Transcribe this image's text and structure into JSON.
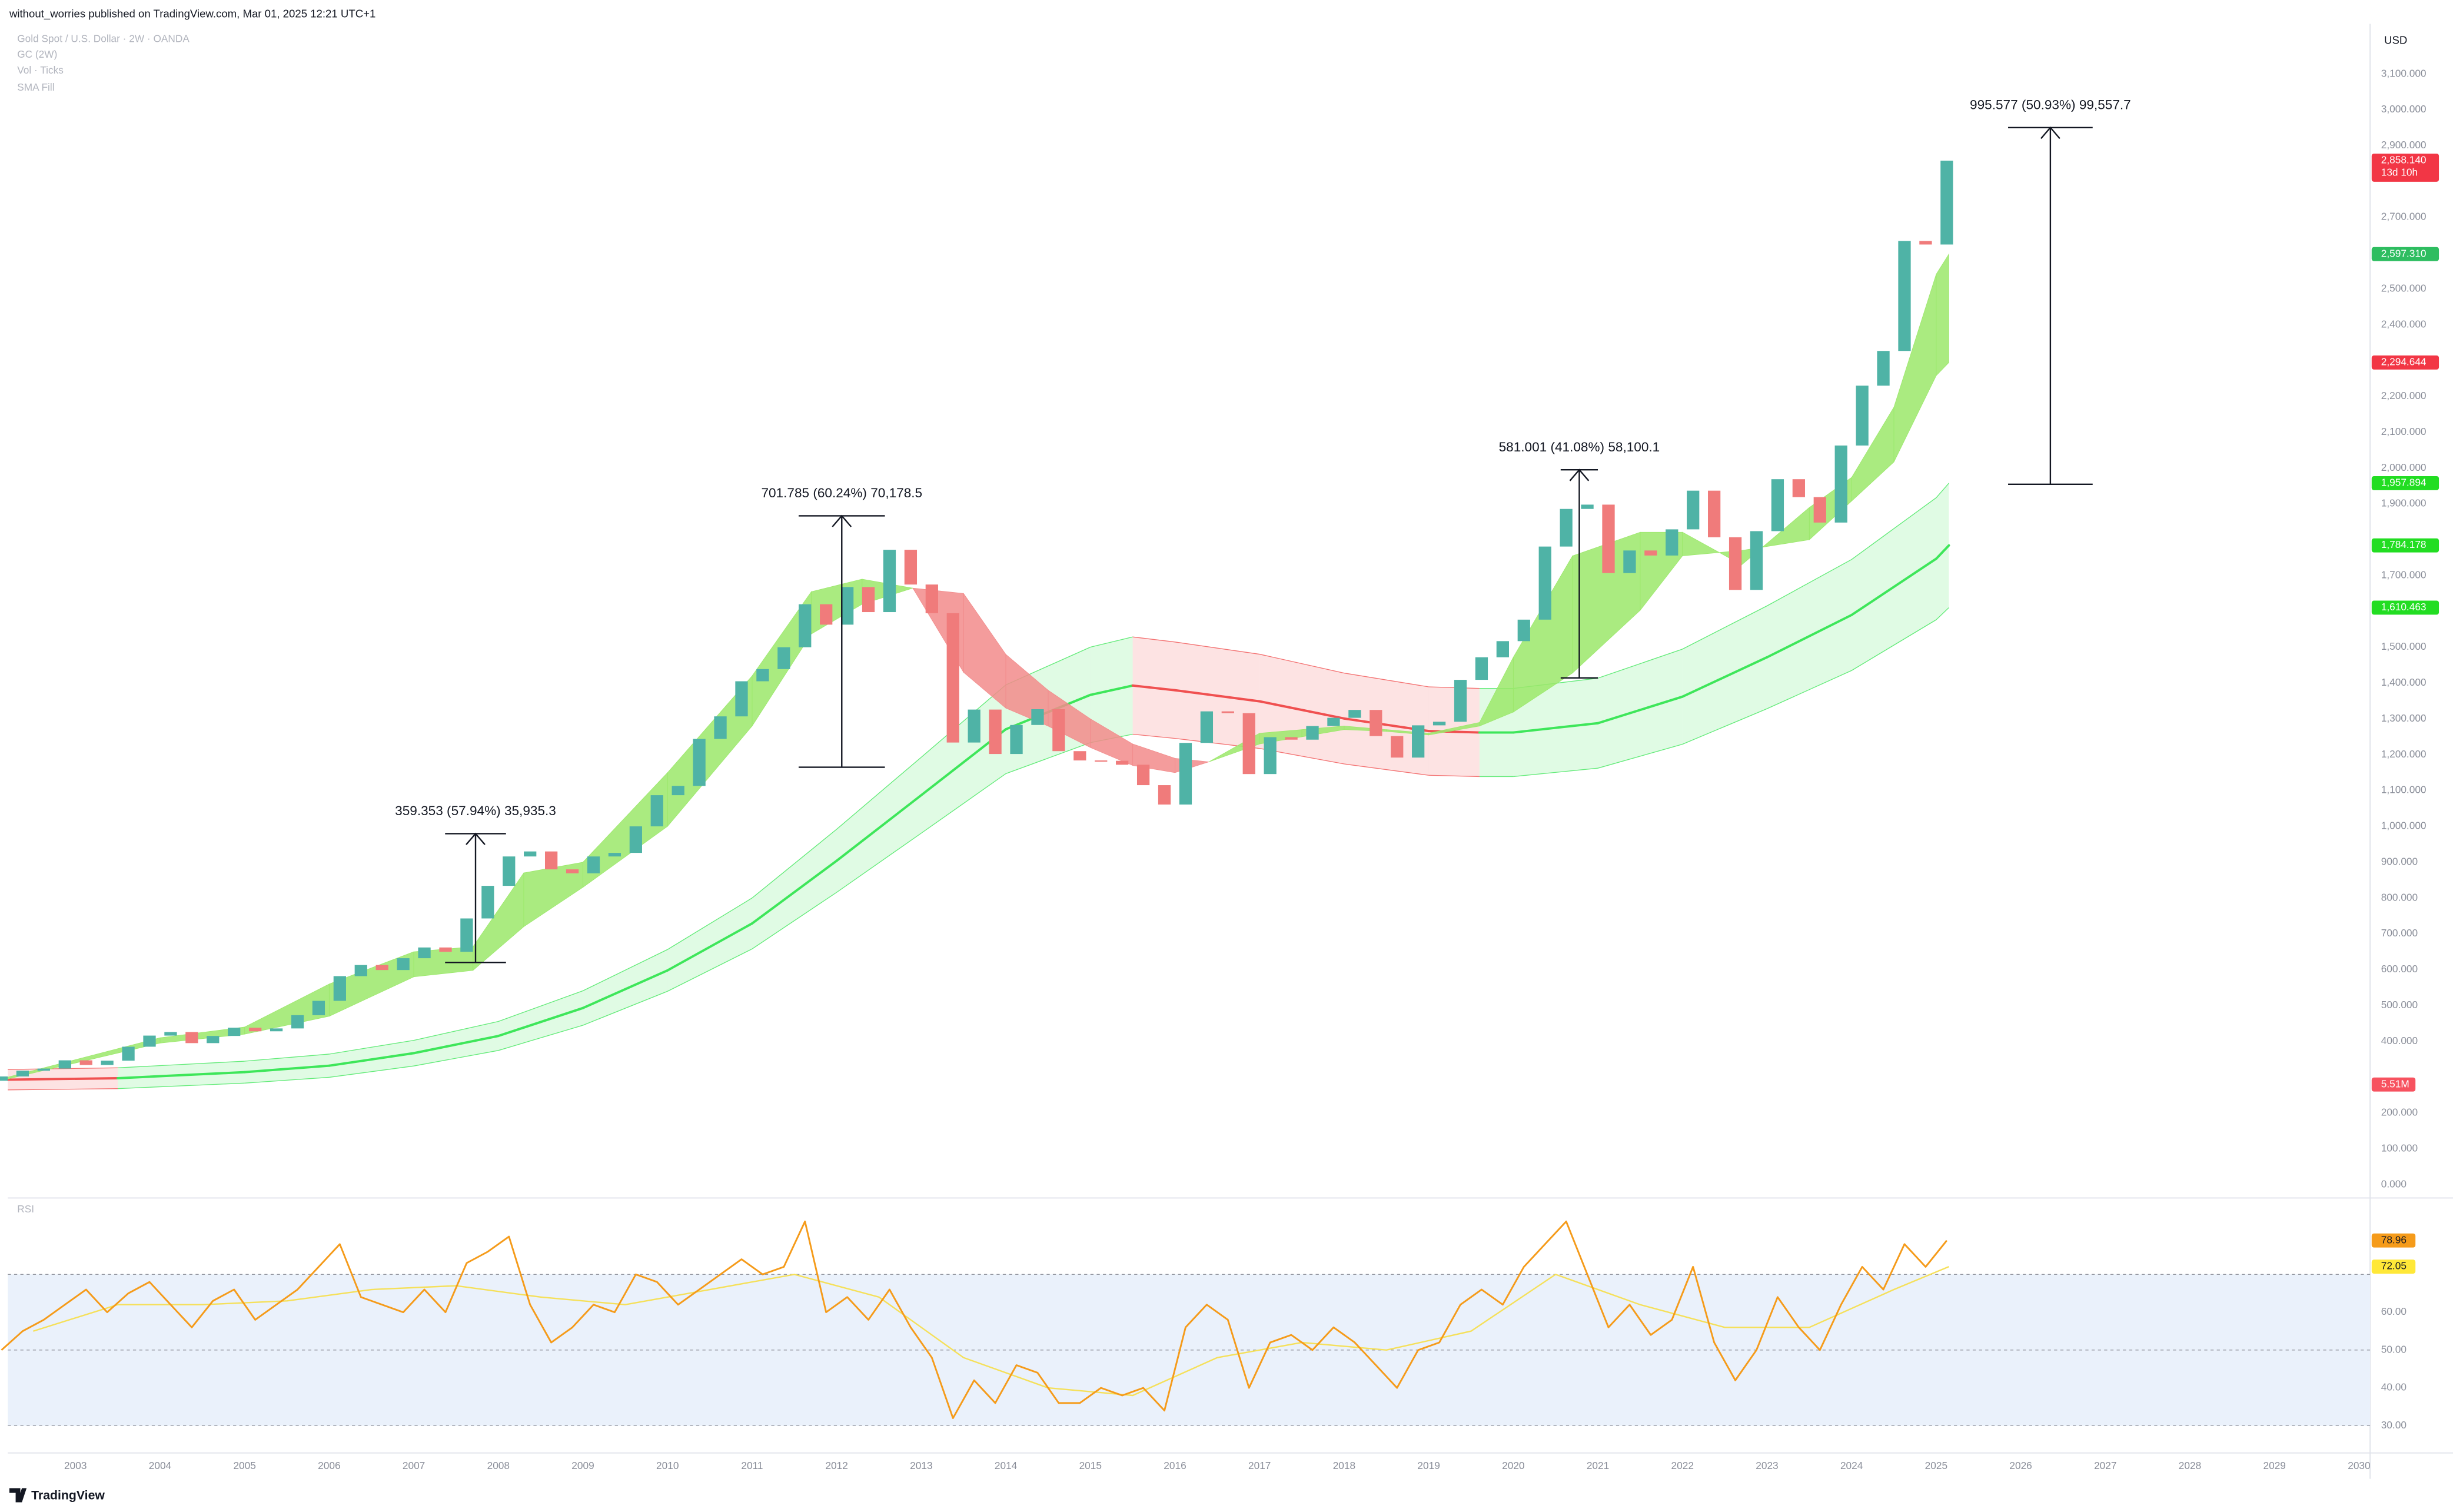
{
  "chart_data": {
    "type": "candlestick",
    "header": "without_worries published on TradingView.com, Mar 01, 2025 12:21 UTC+1",
    "legend": [
      "Gold Spot / U.S. Dollar · 2W · OANDA",
      "GC (2W)",
      "Vol · Ticks",
      "SMA Fill"
    ],
    "currency": "USD",
    "footer": "TradingView",
    "xlim": [
      2002.2,
      2030.13
    ],
    "xticks": [
      2003,
      2004,
      2005,
      2006,
      2007,
      2008,
      2009,
      2010,
      2011,
      2012,
      2013,
      2014,
      2015,
      2016,
      2017,
      2018,
      2019,
      2020,
      2021,
      2022,
      2023,
      2024,
      2025,
      2026,
      2027,
      2028,
      2029,
      2030
    ],
    "ylim": [
      -35,
      3240
    ],
    "yticks": [
      {
        "value": 3100,
        "label": "3,100.000"
      },
      {
        "value": 3000,
        "label": "3,000.000"
      },
      {
        "value": 2900,
        "label": "2,900.000"
      },
      {
        "value": 2700,
        "label": "2,700.000"
      },
      {
        "value": 2500,
        "label": "2,500.000"
      },
      {
        "value": 2400,
        "label": "2,400.000"
      },
      {
        "value": 2200,
        "label": "2,200.000"
      },
      {
        "value": 2100,
        "label": "2,100.000"
      },
      {
        "value": 2000,
        "label": "2,000.000"
      },
      {
        "value": 1900,
        "label": "1,900.000"
      },
      {
        "value": 1700,
        "label": "1,700.000"
      },
      {
        "value": 1500,
        "label": "1,500.000"
      },
      {
        "value": 1400,
        "label": "1,400.000"
      },
      {
        "value": 1300,
        "label": "1,300.000"
      },
      {
        "value": 1200,
        "label": "1,200.000"
      },
      {
        "value": 1100,
        "label": "1,100.000"
      },
      {
        "value": 1000,
        "label": "1,000.000"
      },
      {
        "value": 900,
        "label": "900.000"
      },
      {
        "value": 800,
        "label": "800.000"
      },
      {
        "value": 700,
        "label": "700.000"
      },
      {
        "value": 600,
        "label": "600.000"
      },
      {
        "value": 500,
        "label": "500.000"
      },
      {
        "value": 400,
        "label": "400.000"
      },
      {
        "value": 200,
        "label": "200.000"
      },
      {
        "value": 100,
        "label": "100.000"
      },
      {
        "value": 0,
        "label": "0.000"
      }
    ],
    "candles": {
      "up_color": "#4fb3a6",
      "down_color": "#f07b7b",
      "open": 290,
      "x": [
        2002,
        2002.25,
        2002.5,
        2002.75,
        2003,
        2003.25,
        2003.5,
        2003.75,
        2004,
        2004.25,
        2004.5,
        2004.75,
        2005,
        2005.25,
        2005.5,
        2005.75,
        2006,
        2006.25,
        2006.5,
        2006.75,
        2007,
        2007.25,
        2007.5,
        2007.75,
        2008,
        2008.25,
        2008.5,
        2008.75,
        2009,
        2009.25,
        2009.5,
        2009.75,
        2010,
        2010.25,
        2010.5,
        2010.75,
        2011,
        2011.25,
        2011.5,
        2011.75,
        2012,
        2012.25,
        2012.5,
        2012.75,
        2013,
        2013.25,
        2013.5,
        2013.75,
        2014,
        2014.25,
        2014.5,
        2014.75,
        2015,
        2015.25,
        2015.5,
        2015.75,
        2016,
        2016.25,
        2016.5,
        2016.75,
        2017,
        2017.25,
        2017.5,
        2017.75,
        2018,
        2018.25,
        2018.5,
        2018.75,
        2019,
        2019.25,
        2019.5,
        2019.75,
        2020,
        2020.25,
        2020.5,
        2020.75,
        2021,
        2021.25,
        2021.5,
        2021.75,
        2022,
        2022.25,
        2022.5,
        2022.75,
        2023,
        2023.25,
        2023.5,
        2023.75,
        2024,
        2024.25,
        2024.5,
        2024.75,
        2025
      ],
      "close": [
        302,
        318,
        324,
        347,
        334,
        346,
        385,
        416,
        426,
        395,
        415,
        438,
        428,
        436,
        473,
        513,
        582,
        613,
        599,
        632,
        662,
        650,
        743,
        834,
        916,
        930,
        880,
        869,
        916,
        926,
        1000,
        1087,
        1113,
        1244,
        1307,
        1405,
        1439,
        1500,
        1620,
        1563,
        1668,
        1598,
        1772,
        1675,
        1595,
        1234,
        1326,
        1202,
        1283,
        1327,
        1210,
        1184,
        1183,
        1172,
        1115,
        1061,
        1233,
        1321,
        1316,
        1146,
        1249,
        1242,
        1280,
        1303,
        1325,
        1252,
        1192,
        1282,
        1292,
        1409,
        1472,
        1517,
        1577,
        1781,
        1886,
        1898,
        1707,
        1770,
        1756,
        1829,
        1937,
        1807,
        1660,
        1824,
        1969,
        1919,
        1848,
        2063,
        2230,
        2327,
        2634,
        2624,
        2858.14
      ]
    },
    "long_band": {
      "x": [
        2002.2,
        2003.5,
        2005,
        2006,
        2007,
        2008,
        2009,
        2010,
        2011,
        2012,
        2013,
        2014,
        2015,
        2015.5,
        2016,
        2017,
        2018,
        2019,
        2019.6,
        2020,
        2021,
        2022,
        2023,
        2024,
        2025,
        2025.15
      ],
      "mid": [
        293,
        297,
        314,
        332,
        367,
        415,
        493,
        598,
        729,
        904,
        1087,
        1271,
        1367,
        1393,
        1380,
        1349,
        1301,
        1266,
        1262,
        1262,
        1288,
        1362,
        1472,
        1590,
        1747,
        1784.178
      ],
      "upper": [
        321.6,
        326,
        344.6,
        364.4,
        402.8,
        455.5,
        541.1,
        656.3,
        800.1,
        992.1,
        1193,
        1395,
        1500.3,
        1528.8,
        1514.6,
        1480.5,
        1427.8,
        1389.4,
        1385,
        1385,
        1413.6,
        1494.8,
        1615.5,
        1745,
        1917.3,
        1957.894
      ],
      "lower": [
        264.4,
        268,
        283.4,
        299.6,
        331.2,
        374.5,
        444.9,
        539.7,
        657.9,
        815.9,
        981,
        1147.1,
        1233.7,
        1257.2,
        1245.5,
        1217.5,
        1174.2,
        1142.6,
        1139,
        1139,
        1162.4,
        1229.2,
        1328.5,
        1435,
        1576.7,
        1610.463
      ],
      "colors": [
        "#f05050",
        "#3ee65a",
        "#3ee65a",
        "#3ee65a",
        "#3ee65a",
        "#3ee65a",
        "#3ee65a",
        "#3ee65a",
        "#3ee65a",
        "#3ee65a",
        "#3ee65a",
        "#3ee65a",
        "#3ee65a",
        "#f05050",
        "#f05050",
        "#f05050",
        "#f05050",
        "#f05050",
        "#3ee65a",
        "#3ee65a",
        "#3ee65a",
        "#3ee65a",
        "#3ee65a",
        "#3ee65a",
        "#3ee65a"
      ]
    },
    "fast_fill": {
      "up_color": "#9be86a",
      "down_color": "#f28b8b",
      "x": [
        2002.2,
        2004,
        2005,
        2006,
        2007,
        2007.7,
        2008.3,
        2009,
        2010,
        2011,
        2011.7,
        2012.3,
        2012.9,
        2013.5,
        2014,
        2014.5,
        2015,
        2015.5,
        2016,
        2016.4,
        2017,
        2017.5,
        2018,
        2018.5,
        2019,
        2019.6,
        2020,
        2020.7,
        2021.5,
        2022,
        2022.7,
        2023.5,
        2024,
        2024.5,
        2025,
        2025.15
      ],
      "fast": [
        300,
        410,
        440,
        560,
        650,
        664,
        870,
        900,
        1150,
        1420,
        1655,
        1690,
        1665,
        1430,
        1330,
        1280,
        1220,
        1170,
        1150,
        1180,
        1260,
        1270,
        1280,
        1270,
        1260,
        1290,
        1472,
        1755,
        1821,
        1821,
        1730,
        1890,
        1974,
        2170,
        2541,
        2597.31
      ],
      "slow": [
        295,
        395,
        420,
        470,
        580,
        598,
        720,
        830,
        1000,
        1280,
        1537,
        1620,
        1665,
        1650,
        1480,
        1380,
        1300,
        1230,
        1190,
        1180,
        1230,
        1250,
        1270,
        1265,
        1255,
        1280,
        1319,
        1428,
        1603,
        1755,
        1770,
        1800,
        1908,
        2017,
        2258,
        2294.644
      ]
    },
    "price_labels": [
      {
        "value": 2858.14,
        "label": "2,858.140",
        "sub": "13d 10h",
        "color": "#f23645"
      },
      {
        "value": 2597.31,
        "label": "2,597.310",
        "color": "#2ebd60"
      },
      {
        "value": 2294.644,
        "label": "2,294.644",
        "color": "#f23645"
      },
      {
        "value": 1957.894,
        "label": "1,957.894",
        "color": "#22dd22"
      },
      {
        "value": 1784.178,
        "label": "1,784.178",
        "color": "#22dd22"
      },
      {
        "value": 1610.463,
        "label": "1,610.463",
        "color": "#22dd22"
      }
    ],
    "volume_label": {
      "value": 5510000,
      "label": "5.51M",
      "color": "#f7525f"
    },
    "measurements": [
      {
        "label": "359.353 (57.94%) 35,935.3",
        "from": 620.2,
        "to": 979.6,
        "x": [
          2007.37,
          2008.09
        ]
      },
      {
        "label": "701.785 (60.24%) 70,178.5",
        "from": 1165,
        "to": 1866.8,
        "x": [
          2011.55,
          2012.57
        ]
      },
      {
        "label": "581.001 (41.08%) 58,100.1",
        "from": 1414.3,
        "to": 1995.3,
        "x": [
          2020.56,
          2021.0
        ]
      },
      {
        "label": "995.577 (50.93%) 99,557.7",
        "from": 1954.8,
        "to": 2950.4,
        "x": [
          2025.85,
          2026.85
        ]
      }
    ],
    "rsi": {
      "title": "RSI",
      "color": "#f59b1a",
      "ma_color": "#f5e05a",
      "band_color": "#eaf1fb",
      "ylim": [
        23,
        90
      ],
      "yticks": [
        {
          "value": 60,
          "label": "60.00"
        },
        {
          "value": 50,
          "label": "50.00"
        },
        {
          "value": 40,
          "label": "40.00"
        },
        {
          "value": 30,
          "label": "30.00"
        }
      ],
      "band": [
        30,
        70
      ],
      "mid": 50,
      "values": [
        50,
        55,
        58,
        62,
        66,
        60,
        65,
        68,
        62,
        56,
        63,
        66,
        58,
        62,
        66,
        72,
        78,
        64,
        62,
        60,
        66,
        60,
        73,
        76,
        80,
        62,
        52,
        56,
        62,
        60,
        70,
        68,
        62,
        66,
        70,
        74,
        70,
        72,
        84,
        60,
        64,
        58,
        66,
        56,
        48,
        32,
        42,
        36,
        46,
        44,
        36,
        36,
        40,
        38,
        40,
        34,
        56,
        62,
        58,
        40,
        52,
        54,
        50,
        56,
        52,
        46,
        40,
        50,
        52,
        62,
        66,
        62,
        72,
        78,
        84,
        70,
        56,
        62,
        54,
        58,
        72,
        52,
        42,
        50,
        64,
        56,
        50,
        62,
        72,
        66,
        78,
        72,
        78.96
      ],
      "ma_x": [
        2002.5,
        2003.5,
        2004.5,
        2005.5,
        2006.5,
        2007.5,
        2008.5,
        2009.5,
        2010.5,
        2011.5,
        2012.5,
        2013.5,
        2014.5,
        2015.5,
        2016.5,
        2017.5,
        2018.5,
        2019.5,
        2020.5,
        2021.5,
        2022.5,
        2023.5,
        2024.5,
        2025.15
      ],
      "ma_values": [
        55,
        62,
        62,
        63,
        66,
        67,
        64,
        62,
        66,
        70,
        64,
        48,
        40,
        38,
        48,
        52,
        50,
        55,
        70,
        62,
        56,
        56,
        66,
        72.05
      ],
      "labels": [
        {
          "value": 78.96,
          "label": "78.96",
          "color": "#f59b1a"
        },
        {
          "value": 72.05,
          "label": "72.05",
          "color": "#ffe838"
        }
      ]
    }
  }
}
